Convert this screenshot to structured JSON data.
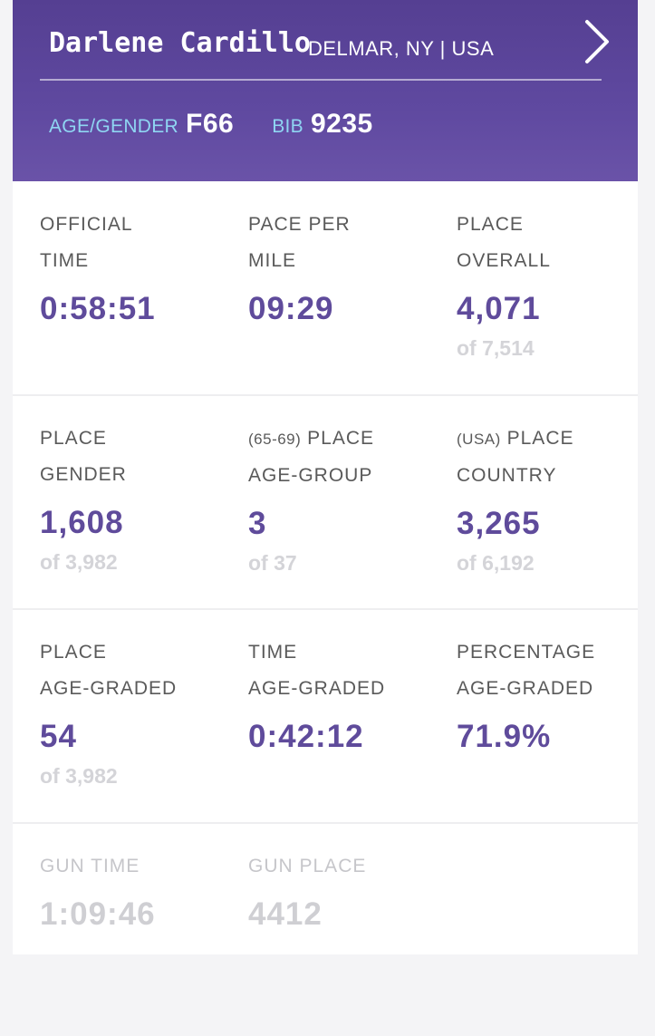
{
  "runner": {
    "name": "Darlene Cardillo",
    "location": "DELMAR, NY | USA",
    "age_gender_label": "AGE/GENDER",
    "age_gender_value": "F66",
    "bib_label": "BIB",
    "bib_value": "9235"
  },
  "icons": {
    "next": "chevron-right-icon"
  },
  "colors": {
    "header_purple": "#5a4498",
    "accent_value": "#5f4b9b",
    "label_cyan": "#8fd6f2",
    "muted_text": "#d4d4d8"
  },
  "results": {
    "official_time": {
      "label_line1": "OFFICIAL",
      "label_line2": "TIME",
      "value": "0:58:51"
    },
    "pace_per_mile": {
      "label_line1": "PACE PER",
      "label_line2": "MILE",
      "value": "09:29"
    },
    "place_overall": {
      "label_line1": "PLACE",
      "label_line2": "OVERALL",
      "value": "4,071",
      "of": "of 7,514"
    },
    "place_gender": {
      "label_line1": "PLACE",
      "label_line2": "GENDER",
      "value": "1,608",
      "of": "of 3,982"
    },
    "place_age_group": {
      "qualifier": "(65-69)",
      "label_line1": "PLACE",
      "label_line2": "AGE-GROUP",
      "value": "3",
      "of": "of 37"
    },
    "place_country": {
      "qualifier": "(USA)",
      "label_line1": "PLACE",
      "label_line2": "COUNTRY",
      "value": "3,265",
      "of": "of 6,192"
    },
    "place_age_graded": {
      "label_line1": "PLACE",
      "label_line2": "AGE-GRADED",
      "value": "54",
      "of": "of 3,982"
    },
    "time_age_graded": {
      "label_line1": "TIME",
      "label_line2": "AGE-GRADED",
      "value": "0:42:12"
    },
    "percentage_age_graded": {
      "label_line1": "PERCENTAGE",
      "label_line2": "AGE-GRADED",
      "value": "71.9%"
    },
    "gun_time": {
      "label": "GUN TIME",
      "value": "1:09:46"
    },
    "gun_place": {
      "label": "GUN PLACE",
      "value": "4412"
    }
  }
}
